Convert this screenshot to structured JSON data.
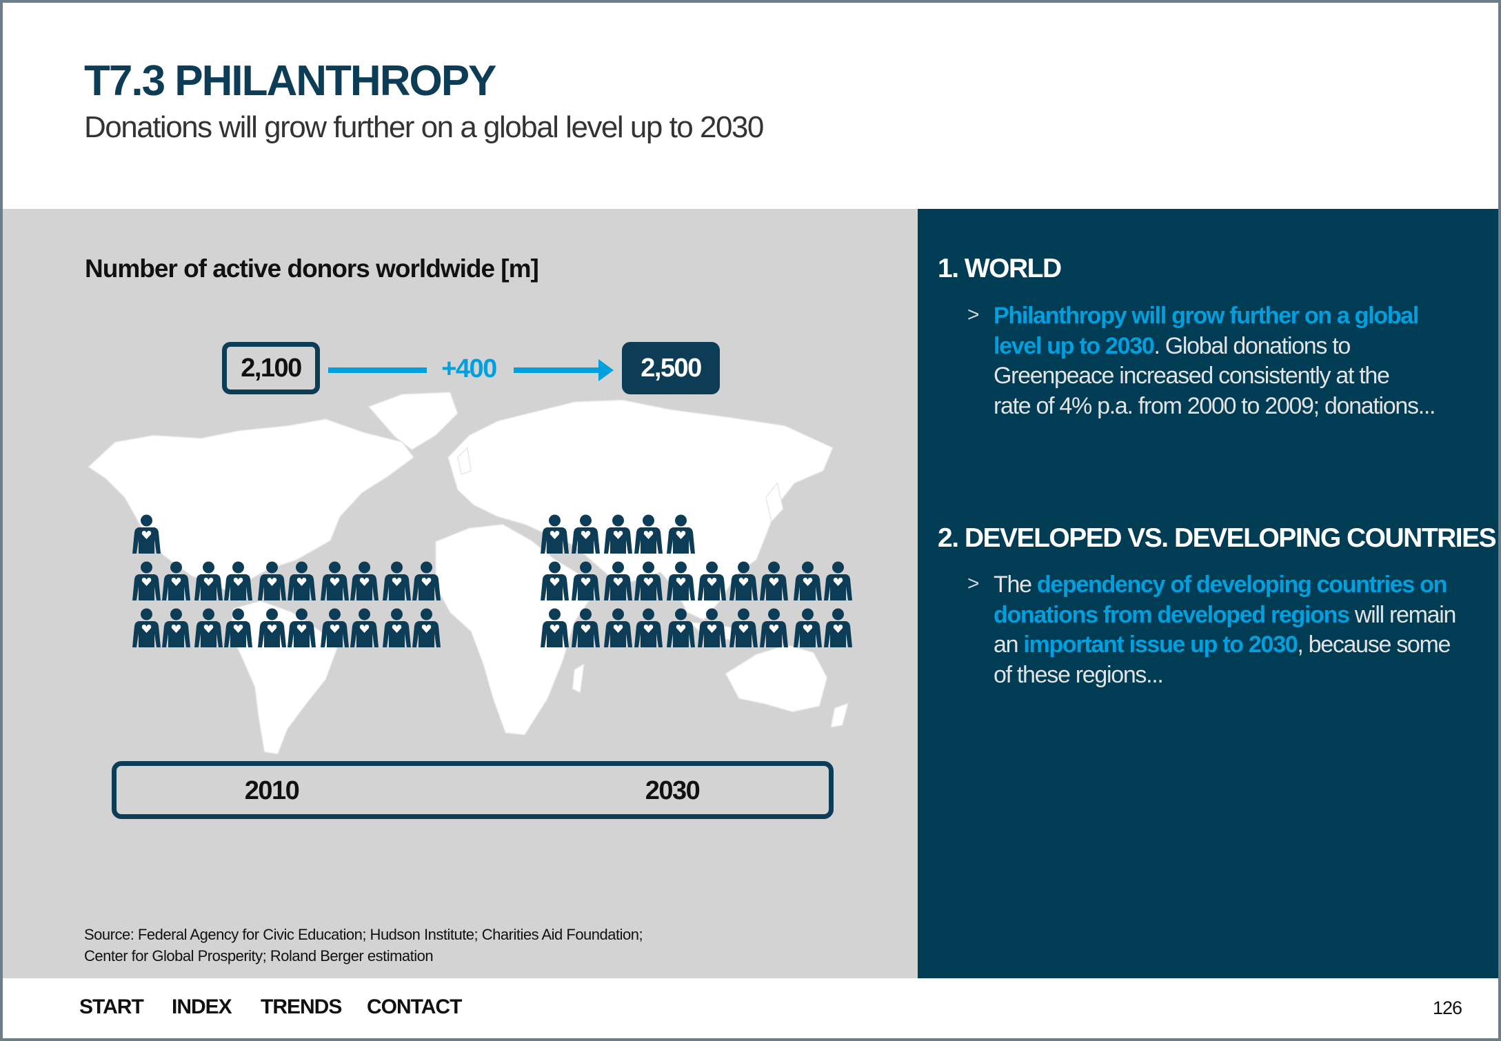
{
  "header": {
    "title": "T7.3 PHILANTHROPY",
    "subtitle": "Donations will grow further on a global level up to 2030"
  },
  "infographic": {
    "title": "Number of active donors worldwide [m]",
    "start_value": "2,100",
    "end_value": "2,500",
    "delta": "+400",
    "start_year": "2010",
    "end_year": "2030",
    "donor_icons_2010": 21,
    "donor_icons_2030": 25,
    "source_lines": [
      "Source: Federal Agency for Civic Education; Hudson Institute; Charities Aid Foundation;",
      "Center for Global Prosperity; Roland Berger estimation"
    ]
  },
  "sidebar": {
    "sections": [
      {
        "heading": "1. WORLD",
        "bullet": ">",
        "segments": [
          "Philanthropy will grow further on a global",
          "level up to 2030",
          ". Global donations to",
          "Greenpeace increased consistently at the",
          "rate of 4% p.a. from 2000 to 2009; donations..."
        ]
      },
      {
        "heading": "2. DEVELOPED VS. DEVELOPING COUNTRIES",
        "bullet": ">",
        "segments": [
          "The ",
          "dependency of developing countries on",
          "donations from developed regions",
          " will remain",
          "an ",
          "important issue up to 2030",
          ", because some",
          "of these regions..."
        ]
      }
    ]
  },
  "footer": {
    "nav": [
      "START",
      "INDEX",
      "TRENDS",
      "CONTACT"
    ],
    "page_number": "126"
  },
  "colors": {
    "brand_dark": "#0d3d56",
    "panel_dark": "#003d55",
    "accent": "#00a0de",
    "panel_gray": "#d3d3d3"
  }
}
